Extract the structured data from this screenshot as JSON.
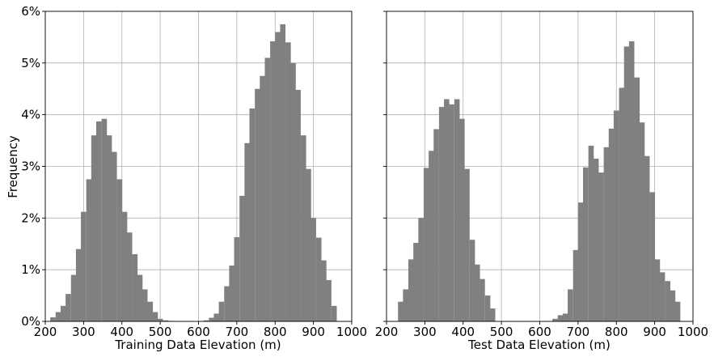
{
  "colors": {
    "bar": "#808080",
    "grid": "#b0b0b0",
    "axis": "#000000"
  },
  "chart_data": [
    {
      "type": "bar",
      "title": "",
      "xlabel": "Training Data Elevation (m)",
      "ylabel": "Frequency",
      "xlim": [
        200,
        1000
      ],
      "ylim": [
        0,
        6
      ],
      "x_ticks": [
        "200",
        "300",
        "400",
        "500",
        "600",
        "700",
        "800",
        "900",
        "1000"
      ],
      "y_ticks": [
        "0%",
        "1%",
        "2%",
        "3%",
        "4%",
        "5%",
        "6%"
      ],
      "grid": true,
      "bin_width": 13.3,
      "bin_starts": [
        213,
        227,
        240,
        253,
        267,
        280,
        293,
        307,
        320,
        333,
        347,
        360,
        373,
        387,
        400,
        413,
        427,
        440,
        453,
        467,
        480,
        493,
        507,
        520,
        613,
        627,
        640,
        653,
        667,
        680,
        693,
        707,
        720,
        733,
        747,
        760,
        773,
        787,
        800,
        813,
        827,
        840,
        853,
        867,
        880,
        893,
        907,
        920,
        933,
        947
      ],
      "values": [
        0.08,
        0.18,
        0.3,
        0.53,
        0.9,
        1.4,
        2.12,
        2.75,
        3.6,
        3.87,
        3.92,
        3.6,
        3.28,
        2.75,
        2.12,
        1.72,
        1.3,
        0.9,
        0.62,
        0.38,
        0.18,
        0.05,
        0.02,
        0.01,
        0.02,
        0.07,
        0.15,
        0.38,
        0.68,
        1.08,
        1.63,
        2.43,
        3.45,
        4.12,
        4.5,
        4.75,
        5.1,
        5.42,
        5.6,
        5.75,
        5.4,
        5.0,
        4.48,
        3.6,
        2.95,
        2.0,
        1.62,
        1.18,
        0.8,
        0.3
      ]
    },
    {
      "type": "bar",
      "title": "",
      "xlabel": "Test Data Elevation (m)",
      "ylabel": "",
      "xlim": [
        200,
        1000
      ],
      "ylim": [
        0,
        6
      ],
      "x_ticks": [
        "200",
        "300",
        "400",
        "500",
        "600",
        "700",
        "800",
        "900",
        "1000"
      ],
      "y_ticks": [],
      "grid": true,
      "bin_width": 13.3,
      "bin_starts": [
        230,
        243,
        257,
        270,
        283,
        297,
        310,
        323,
        337,
        350,
        363,
        377,
        390,
        403,
        417,
        430,
        443,
        457,
        470,
        633,
        647,
        660,
        673,
        687,
        700,
        713,
        727,
        740,
        753,
        767,
        780,
        793,
        807,
        820,
        833,
        847,
        860,
        873,
        887,
        900,
        913,
        927,
        940,
        953,
        967
      ],
      "values": [
        0.38,
        0.62,
        1.2,
        1.52,
        2.0,
        2.97,
        3.3,
        3.72,
        4.15,
        4.3,
        4.2,
        4.3,
        3.92,
        2.95,
        1.58,
        1.1,
        0.82,
        0.5,
        0.25,
        0.05,
        0.12,
        0.15,
        0.62,
        1.38,
        2.3,
        2.98,
        3.4,
        3.15,
        2.88,
        3.37,
        3.73,
        4.08,
        4.52,
        5.32,
        5.42,
        4.72,
        3.85,
        3.2,
        2.5,
        1.2,
        0.95,
        0.78,
        0.6,
        0.38,
        0.0
      ]
    }
  ]
}
